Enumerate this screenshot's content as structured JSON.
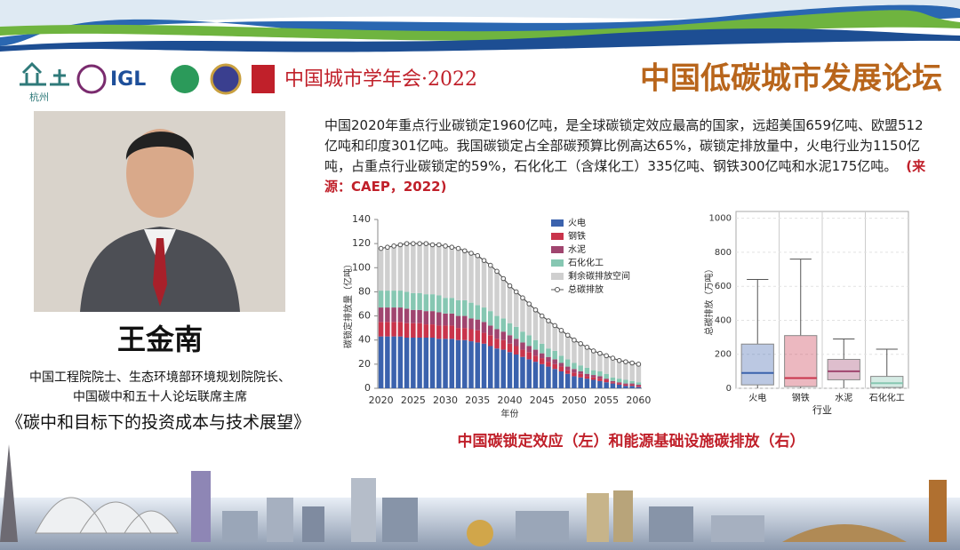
{
  "header": {
    "city": "杭州",
    "org": "IGL",
    "event": "中国城市学年会·2022",
    "title": "中国低碳城市发展论坛"
  },
  "speaker": {
    "name": "王金南",
    "titles": [
      "中国工程院院士、生态环境部环境规划院院长、",
      "中国碳中和五十人论坛联席主席"
    ],
    "talk": "《碳中和目标下的投资成本与技术展望》"
  },
  "body": {
    "text": "中国2020年重点行业碳锁定1960亿吨，是全球碳锁定效应最高的国家，远超美国659亿吨、欧盟512亿吨和印度301亿吨。我国碳锁定占全部碳预算比例高达65%，碳锁定排放量中，火电行业为1150亿吨，占重点行业碳锁定的59%，石化化工（含煤化工）335亿吨、钢铁300亿吨和水泥175亿吨。",
    "source": "(来源：CAEP，2022)"
  },
  "caption": "中国碳锁定效应（左）和能源基础设施碳排放（右）",
  "chart_data": [
    {
      "type": "bar",
      "stacked": true,
      "y_label": "碳锁定排放量（亿吨）",
      "x_label": "年份",
      "categories": [
        "2020",
        null,
        null,
        null,
        null,
        "2025",
        null,
        null,
        null,
        null,
        "2030",
        null,
        null,
        null,
        null,
        "2035",
        null,
        null,
        null,
        null,
        "2040",
        null,
        null,
        null,
        null,
        "2045",
        null,
        null,
        null,
        null,
        "2050",
        null,
        null,
        null,
        null,
        "2055",
        null,
        null,
        null,
        null,
        "2060"
      ],
      "ylim": [
        0,
        140
      ],
      "yticks": [
        0,
        20,
        40,
        60,
        80,
        100,
        120,
        140
      ],
      "series": [
        {
          "name": "火电",
          "color": "#3b62ad",
          "values": [
            43,
            43,
            43,
            43,
            42,
            42,
            42,
            42,
            42,
            41,
            41,
            41,
            40,
            40,
            39,
            38,
            37,
            35,
            33,
            32,
            30,
            28,
            26,
            24,
            22,
            20,
            18,
            16,
            14,
            12,
            10,
            9,
            8,
            7,
            6,
            5,
            4,
            3,
            2,
            2,
            1
          ]
        },
        {
          "name": "钢铁",
          "color": "#c9344b",
          "values": [
            12,
            12,
            12,
            12,
            12,
            12,
            12,
            11,
            11,
            11,
            11,
            11,
            10,
            10,
            10,
            10,
            9,
            9,
            8,
            8,
            7,
            7,
            6,
            6,
            5,
            5,
            4,
            4,
            4,
            3,
            3,
            3,
            2,
            2,
            2,
            2,
            1,
            1,
            1,
            1,
            1
          ]
        },
        {
          "name": "水泥",
          "color": "#a0456f",
          "values": [
            12,
            12,
            12,
            12,
            12,
            11,
            11,
            11,
            11,
            11,
            10,
            10,
            10,
            10,
            9,
            9,
            9,
            8,
            8,
            7,
            7,
            6,
            6,
            5,
            5,
            4,
            4,
            4,
            3,
            3,
            3,
            2,
            2,
            2,
            2,
            1,
            1,
            1,
            1,
            1,
            1
          ]
        },
        {
          "name": "石化化工",
          "color": "#86c7b2",
          "values": [
            14,
            14,
            14,
            14,
            14,
            14,
            14,
            14,
            14,
            14,
            13,
            13,
            13,
            13,
            13,
            12,
            12,
            12,
            11,
            11,
            10,
            10,
            9,
            9,
            8,
            8,
            7,
            7,
            6,
            6,
            5,
            5,
            5,
            4,
            4,
            4,
            3,
            3,
            3,
            2,
            2
          ]
        },
        {
          "name": "剩余碳排放空间",
          "color": "#cfcfcf",
          "values": [
            35,
            36,
            37,
            38,
            40,
            41,
            41,
            42,
            41,
            42,
            43,
            42,
            43,
            41,
            41,
            41,
            39,
            38,
            37,
            33,
            31,
            29,
            28,
            26,
            25,
            23,
            23,
            21,
            21,
            20,
            19,
            18,
            17,
            16,
            15,
            15,
            16,
            15,
            15,
            15,
            15
          ]
        },
        {
          "name": "总碳排放",
          "type": "line",
          "color": "#555555",
          "values": [
            116,
            117,
            118,
            119,
            120,
            120,
            120,
            120,
            119,
            119,
            118,
            117,
            116,
            114,
            112,
            110,
            106,
            102,
            97,
            91,
            85,
            80,
            75,
            70,
            65,
            60,
            56,
            52,
            48,
            44,
            40,
            37,
            34,
            31,
            29,
            27,
            25,
            23,
            22,
            21,
            20
          ]
        }
      ]
    },
    {
      "type": "box",
      "y_label": "总碳排放（万吨）",
      "x_label": "行业",
      "categories": [
        "火电",
        "钢铁",
        "水泥",
        "石化化工"
      ],
      "colors": [
        "#3b62ad",
        "#c9344b",
        "#a0456f",
        "#86c7b2"
      ],
      "ylim": [
        0,
        1040
      ],
      "yticks": [
        0,
        200,
        400,
        600,
        800,
        1000
      ],
      "whisker_low": [
        0,
        0,
        0,
        0
      ],
      "q1": [
        20,
        10,
        50,
        5
      ],
      "median": [
        90,
        60,
        100,
        30
      ],
      "q3": [
        260,
        310,
        170,
        70
      ],
      "whisker_high": [
        640,
        760,
        290,
        230
      ]
    }
  ]
}
